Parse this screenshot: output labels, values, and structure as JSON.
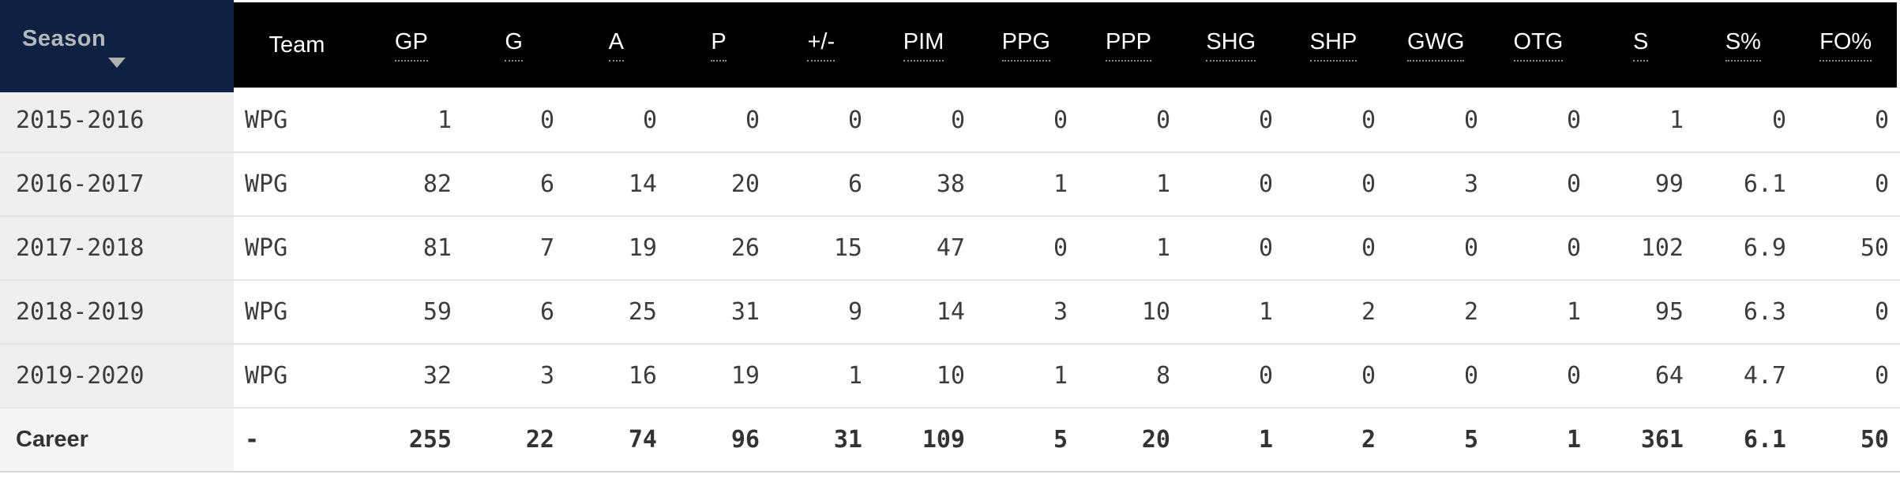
{
  "table": {
    "sort": {
      "column": "Season",
      "direction": "descending",
      "icon": "caret-down-icon"
    },
    "columns": [
      {
        "key": "season",
        "label": "Season",
        "underlined": false
      },
      {
        "key": "team",
        "label": "Team",
        "underlined": false
      },
      {
        "key": "gp",
        "label": "GP",
        "underlined": true
      },
      {
        "key": "g",
        "label": "G",
        "underlined": true
      },
      {
        "key": "a",
        "label": "A",
        "underlined": true
      },
      {
        "key": "p",
        "label": "P",
        "underlined": true
      },
      {
        "key": "plusminus",
        "label": "+/-",
        "underlined": true
      },
      {
        "key": "pim",
        "label": "PIM",
        "underlined": true
      },
      {
        "key": "ppg",
        "label": "PPG",
        "underlined": true
      },
      {
        "key": "ppp",
        "label": "PPP",
        "underlined": true
      },
      {
        "key": "shg",
        "label": "SHG",
        "underlined": true
      },
      {
        "key": "shp",
        "label": "SHP",
        "underlined": true
      },
      {
        "key": "gwg",
        "label": "GWG",
        "underlined": true
      },
      {
        "key": "otg",
        "label": "OTG",
        "underlined": true
      },
      {
        "key": "s",
        "label": "S",
        "underlined": true
      },
      {
        "key": "spct",
        "label": "S%",
        "underlined": true
      },
      {
        "key": "fopct",
        "label": "FO%",
        "underlined": true
      }
    ],
    "rows": [
      {
        "season": "2015-2016",
        "team": "WPG",
        "stats": [
          "1",
          "0",
          "0",
          "0",
          "0",
          "0",
          "0",
          "0",
          "0",
          "0",
          "0",
          "0",
          "1",
          "0",
          "0"
        ]
      },
      {
        "season": "2016-2017",
        "team": "WPG",
        "stats": [
          "82",
          "6",
          "14",
          "20",
          "6",
          "38",
          "1",
          "1",
          "0",
          "0",
          "3",
          "0",
          "99",
          "6.1",
          "0"
        ]
      },
      {
        "season": "2017-2018",
        "team": "WPG",
        "stats": [
          "81",
          "7",
          "19",
          "26",
          "15",
          "47",
          "0",
          "1",
          "0",
          "0",
          "0",
          "0",
          "102",
          "6.9",
          "50"
        ]
      },
      {
        "season": "2018-2019",
        "team": "WPG",
        "stats": [
          "59",
          "6",
          "25",
          "31",
          "9",
          "14",
          "3",
          "10",
          "1",
          "2",
          "2",
          "1",
          "95",
          "6.3",
          "0"
        ]
      },
      {
        "season": "2019-2020",
        "team": "WPG",
        "stats": [
          "32",
          "3",
          "16",
          "19",
          "1",
          "10",
          "1",
          "8",
          "0",
          "0",
          "0",
          "0",
          "64",
          "4.7",
          "0"
        ]
      }
    ],
    "career_row": {
      "season": "Career",
      "team": "-",
      "stats": [
        "255",
        "22",
        "74",
        "96",
        "31",
        "109",
        "5",
        "20",
        "1",
        "2",
        "5",
        "1",
        "361",
        "6.1",
        "50"
      ]
    },
    "colors": {
      "header_bg": "#000000",
      "sorted_header_bg": "#0e2142",
      "header_text": "#ffffff",
      "sorted_header_text": "#b3b8bd",
      "row_label_bg": "#efefef",
      "career_label_bg": "#f5f5f5",
      "data_text": "#3c3c3c",
      "row_separator": "#e4e4e4",
      "bottom_border": "#d5d5d5",
      "caret": "#b0b0b0",
      "header_underline": "#8f8f8f"
    }
  }
}
